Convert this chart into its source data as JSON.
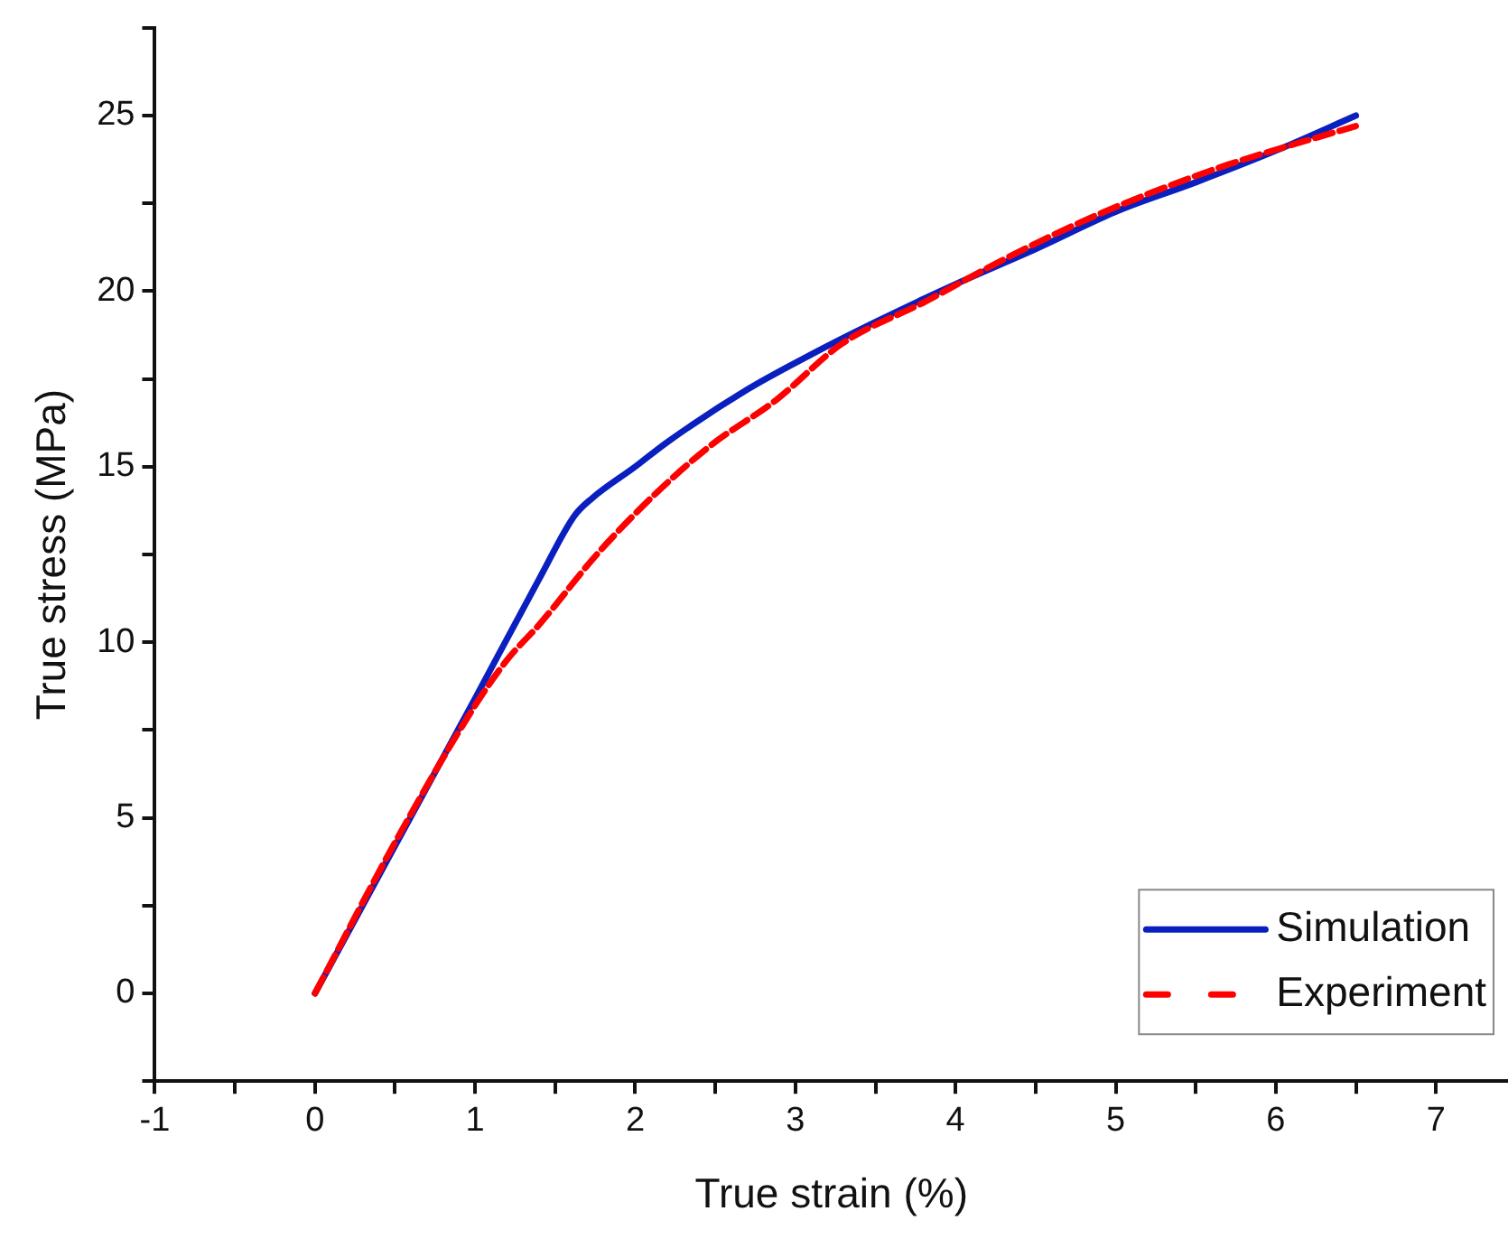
{
  "chart_data": {
    "type": "line",
    "xlabel": "True strain (%)",
    "ylabel": "True stress (MPa)",
    "xlim": [
      -1,
      7.45
    ],
    "ylim": [
      -2.5,
      27.5
    ],
    "xticks": [
      -1,
      {
        "value": -0.5,
        "label": null
      },
      0,
      {
        "value": 0.5,
        "label": null
      },
      1,
      {
        "value": 1.5,
        "label": null
      },
      2,
      {
        "value": 2.5,
        "label": null
      },
      3,
      {
        "value": 3.5,
        "label": null
      },
      4,
      {
        "value": 4.5,
        "label": null
      },
      5,
      {
        "value": 5.5,
        "label": null
      },
      6,
      {
        "value": 6.5,
        "label": null
      },
      7
    ],
    "yticks": [
      {
        "value": -2.5,
        "label": null
      },
      0,
      {
        "value": 2.5,
        "label": null
      },
      5,
      {
        "value": 7.5,
        "label": null
      },
      10,
      {
        "value": 12.5,
        "label": null
      },
      15,
      {
        "value": 17.5,
        "label": null
      },
      20,
      {
        "value": 22.5,
        "label": null
      },
      25,
      {
        "value": 27.5,
        "label": null
      }
    ],
    "grid": false,
    "legend": "bottom right",
    "marker": "none",
    "series": [
      {
        "name": "Simulation",
        "color": "#0a1fbf",
        "line_style": "solid",
        "x": [
          0,
          0.5,
          1,
          1.4,
          1.62,
          1.73,
          2.0,
          2.2,
          2.7,
          3.1,
          3.49,
          4.0,
          4.5,
          5.02,
          5.5,
          6.0,
          6.5
        ],
        "values": [
          0,
          4.2,
          8.4,
          11.8,
          13.6,
          14.1,
          15.0,
          15.7,
          17.2,
          18.2,
          19.1,
          20.2,
          21.2,
          22.3,
          23.1,
          24.0,
          25.0
        ]
      },
      {
        "name": "Experiment",
        "color": "#ff0000",
        "line_style": "dashed",
        "x": [
          0,
          0.5,
          1,
          1.2,
          1.4,
          1.76,
          2.12,
          2.47,
          2.88,
          3.29,
          3.81,
          4.3,
          4.8,
          5.22,
          5.7,
          6.2,
          6.5
        ],
        "values": [
          0,
          4.3,
          8.2,
          9.5,
          10.5,
          12.5,
          14.2,
          15.6,
          16.9,
          18.5,
          19.7,
          20.9,
          22.0,
          22.8,
          23.6,
          24.3,
          24.7
        ]
      }
    ]
  }
}
